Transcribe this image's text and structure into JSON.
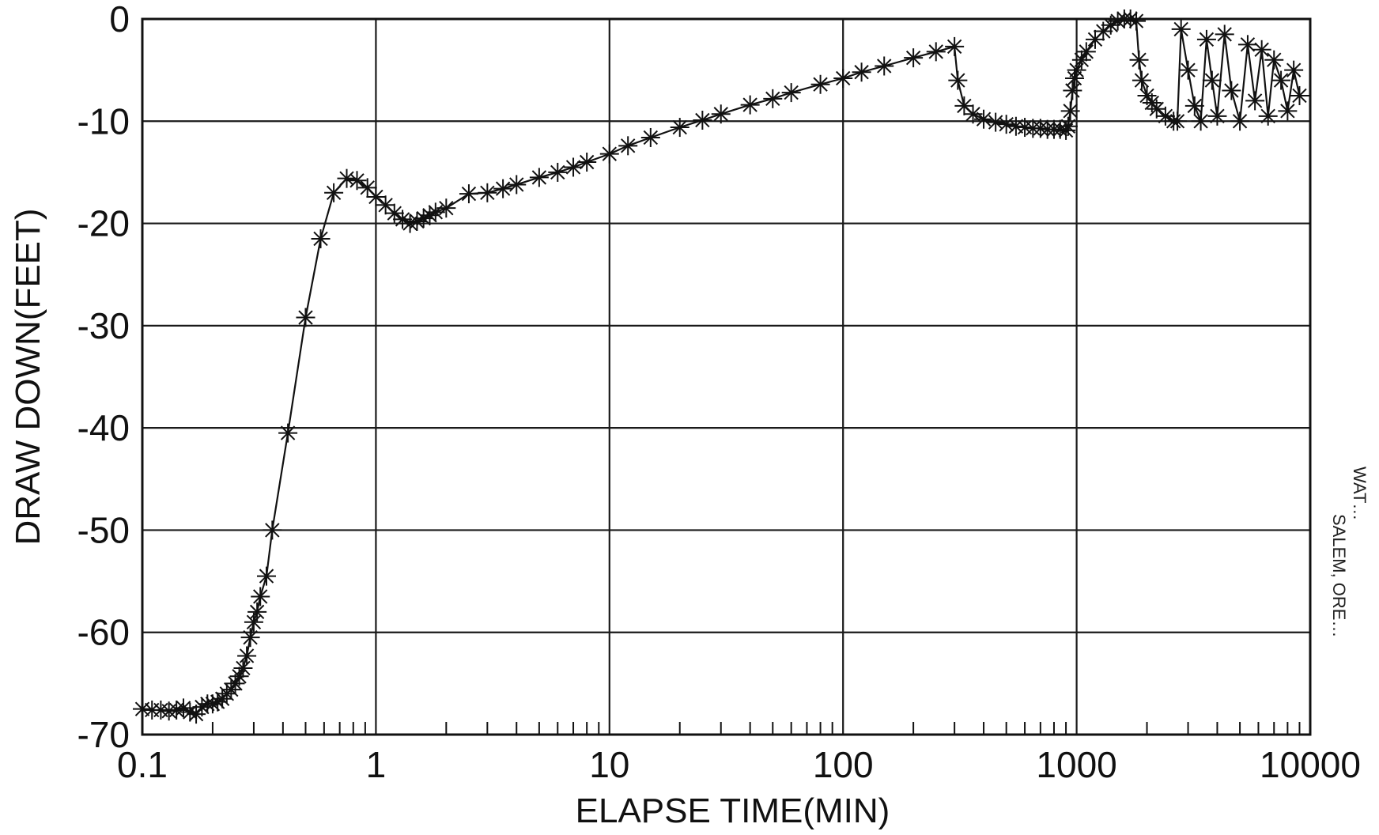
{
  "chart_data": {
    "type": "scatter",
    "title": "",
    "xlabel": "ELAPSE TIME(MIN)",
    "ylabel": "DRAW DOWN(FEET)",
    "x_scale": "log",
    "xlim": [
      0.1,
      10000
    ],
    "ylim": [
      -70,
      0
    ],
    "grid": true,
    "x_ticks": [
      "0.1",
      "1",
      "10",
      "100",
      "1000",
      "10000"
    ],
    "y_ticks": [
      "0",
      "-10",
      "-20",
      "-30",
      "-40",
      "-50",
      "-60",
      "-70"
    ],
    "marker": "asterisk",
    "side_annotation": [
      "WAT…",
      "SALEM, ORE…"
    ],
    "series": [
      {
        "x": [
          0.1,
          0.11,
          0.12,
          0.13,
          0.14,
          0.15,
          0.16,
          0.17,
          0.18,
          0.19,
          0.2,
          0.21,
          0.22,
          0.23,
          0.24,
          0.25,
          0.26,
          0.27,
          0.28,
          0.29,
          0.3,
          0.31,
          0.32,
          0.34,
          0.36,
          0.42,
          0.5,
          0.58,
          0.66,
          0.75,
          0.83,
          0.92,
          1.0,
          1.1,
          1.2,
          1.3,
          1.4,
          1.5,
          1.6,
          1.7,
          1.8,
          2.0,
          2.5,
          3.0,
          3.5,
          4.0,
          5.0,
          6.0,
          7.0,
          8.0,
          10,
          12,
          15,
          20,
          25,
          30,
          40,
          50,
          60,
          80,
          100,
          120,
          150,
          200,
          250,
          300,
          310,
          330,
          360,
          400,
          450,
          500,
          550,
          600,
          650,
          700,
          750,
          800,
          850,
          900,
          920,
          940,
          960,
          980,
          1000,
          1050,
          1100,
          1200,
          1300,
          1400,
          1500,
          1600,
          1700,
          1800,
          1850,
          1900,
          2000,
          2100,
          2200,
          2400,
          2600,
          2700,
          2800,
          3000,
          3200,
          3400,
          3600,
          3800,
          4000,
          4300,
          4600,
          5000,
          5400,
          5800,
          6200,
          6600,
          7000,
          7500,
          8000,
          8500,
          9000
        ],
        "y": [
          -67.5,
          -67.6,
          -67.6,
          -67.7,
          -67.6,
          -67.4,
          -67.8,
          -68.0,
          -67.3,
          -67.0,
          -67.0,
          -66.8,
          -66.5,
          -66.0,
          -65.6,
          -65.0,
          -64.3,
          -63.5,
          -62.3,
          -60.5,
          -59.0,
          -58.0,
          -56.5,
          -54.5,
          -50.0,
          -40.5,
          -29.2,
          -21.5,
          -17.0,
          -15.6,
          -15.8,
          -16.5,
          -17.4,
          -18.2,
          -19.0,
          -19.6,
          -20.0,
          -19.8,
          -19.5,
          -19.2,
          -18.9,
          -18.5,
          -17.1,
          -17.0,
          -16.6,
          -16.2,
          -15.5,
          -15.0,
          -14.5,
          -14.0,
          -13.2,
          -12.4,
          -11.6,
          -10.6,
          -9.9,
          -9.3,
          -8.4,
          -7.8,
          -7.2,
          -6.4,
          -5.8,
          -5.2,
          -4.6,
          -3.8,
          -3.2,
          -2.7,
          -6.0,
          -8.5,
          -9.3,
          -9.8,
          -10.1,
          -10.3,
          -10.5,
          -10.6,
          -10.7,
          -10.7,
          -10.8,
          -10.8,
          -10.8,
          -10.9,
          -10.5,
          -9.0,
          -7.0,
          -5.8,
          -5.0,
          -4.0,
          -3.2,
          -2.0,
          -1.2,
          -0.6,
          -0.2,
          0.0,
          0.0,
          -0.2,
          -4.0,
          -6.0,
          -7.5,
          -8.2,
          -8.8,
          -9.5,
          -10.0,
          -10.0,
          -1.0,
          -5.0,
          -8.5,
          -10.0,
          -2.0,
          -6.0,
          -9.5,
          -1.5,
          -7.0,
          -10.0,
          -2.5,
          -8.0,
          -3.0,
          -9.5,
          -4.0,
          -6.0,
          -9.0,
          -5.0,
          -7.5
        ]
      }
    ]
  }
}
